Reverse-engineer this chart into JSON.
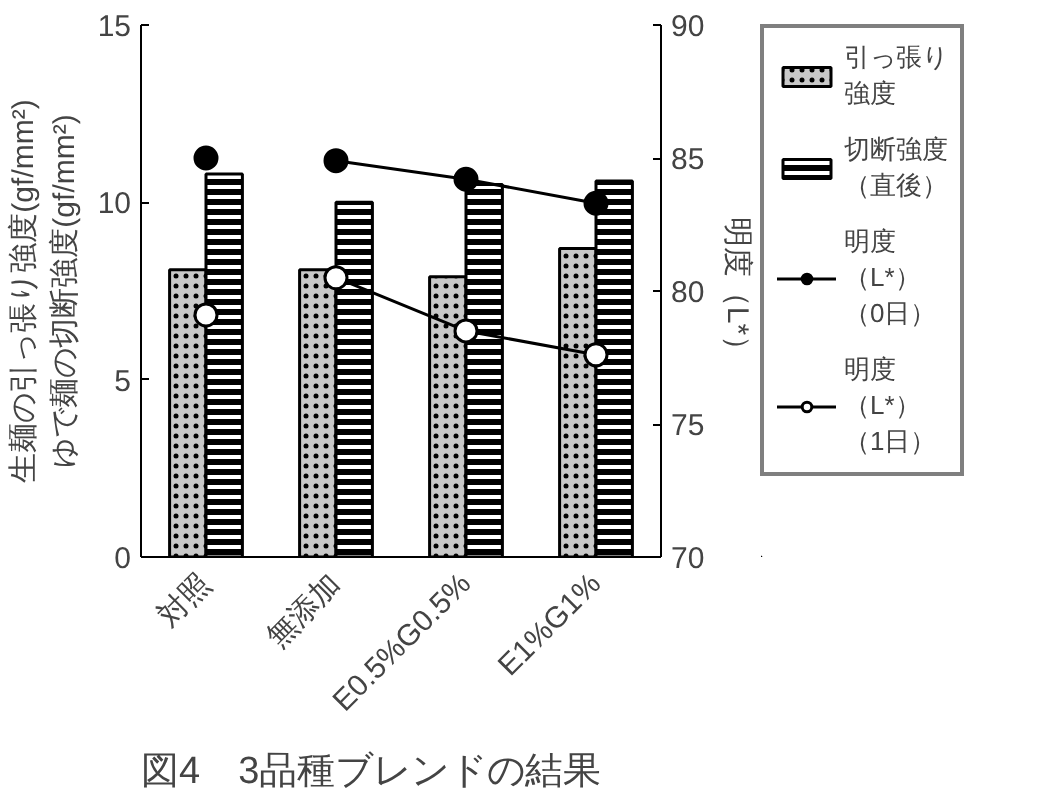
{
  "chart_data": {
    "type": "bar",
    "title": "図4　3品種ブレンドの結果",
    "ylabel": "生麺の引っ張り強度(gf/mm²)\nゆで麺の切断強度(gf/mm²)",
    "y2label": "明度（L*）",
    "categories": [
      "対照",
      "無添加",
      "E0.5%G0.5%",
      "E1%G1%"
    ],
    "ylim": [
      0,
      15
    ],
    "yticks": [
      0,
      5,
      10,
      15
    ],
    "y2lim": [
      70,
      90
    ],
    "y2ticks": [
      70,
      75,
      80,
      85,
      90
    ],
    "grid": false,
    "legend": "right",
    "marker": "circle",
    "series": [
      {
        "name": "引っ張り強度",
        "color": "#c8c8c8",
        "values": [
          8.1,
          8.1,
          7.9,
          8.7
        ]
      },
      {
        "name": "切断強度（直後）",
        "color": "#000000",
        "values": [
          10.8,
          10.0,
          10.5,
          10.6
        ]
      },
      {
        "name": "明度（L*）（0日）",
        "type": "line",
        "axis": "y2",
        "color": "#000000",
        "values": [
          null,
          84.9,
          84.2,
          83.3
        ]
      },
      {
        "type": "scatter",
        "axis": "y2",
        "color": "#000000",
        "values": [
          85.0,
          null,
          null,
          null
        ]
      },
      {
        "name": "明度（L*）（1日）",
        "type": "line",
        "axis": "y2",
        "color": "#ffffff",
        "values": [
          null,
          80.5,
          78.5,
          77.6
        ]
      },
      {
        "type": "scatter",
        "axis": "y2",
        "color": "#ffffff",
        "values": [
          79.1,
          null,
          null,
          null
        ]
      }
    ]
  }
}
